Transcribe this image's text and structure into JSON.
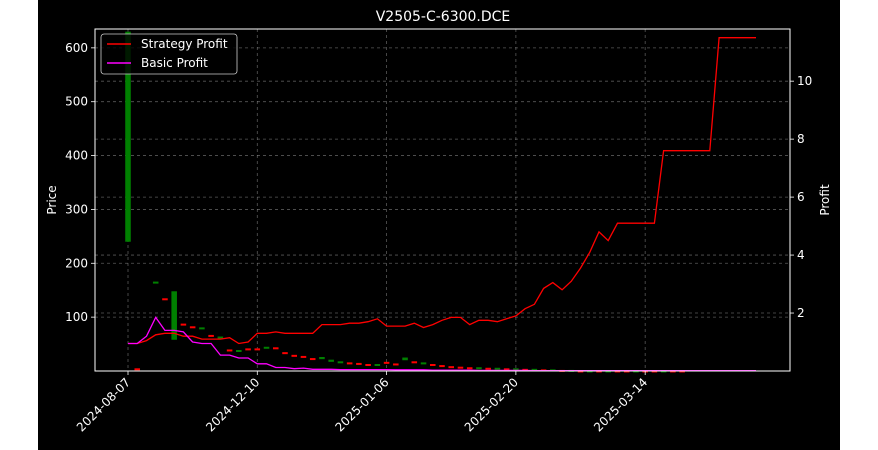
{
  "chart_data": {
    "type": "line",
    "title": "V2505-C-6300.DCE",
    "ylabel": "Price",
    "ylabel_right": "Profit",
    "x_tick_labels": [
      "2024-08-07",
      "2024-12-10",
      "2025-01-06",
      "2025-02-20",
      "2025-03-14"
    ],
    "y_ticks": [
      100,
      200,
      300,
      400,
      500,
      600
    ],
    "y_right_ticks": [
      2,
      4,
      6,
      8,
      10
    ],
    "ylim": [
      0,
      635
    ],
    "ylim_right": [
      0.0,
      11.8
    ],
    "grid": true,
    "legend_position": "top-left",
    "series": [
      {
        "name": "Strategy Profit",
        "axis": "right",
        "color": "#ff0000",
        "values": [
          0.95,
          0.95,
          1.05,
          1.25,
          1.3,
          1.3,
          1.2,
          1.2,
          1.1,
          1.1,
          1.1,
          1.15,
          0.95,
          1.0,
          1.3,
          1.3,
          1.35,
          1.3,
          1.3,
          1.3,
          1.3,
          1.6,
          1.6,
          1.6,
          1.65,
          1.65,
          1.7,
          1.8,
          1.55,
          1.55,
          1.55,
          1.65,
          1.5,
          1.6,
          1.75,
          1.85,
          1.85,
          1.6,
          1.75,
          1.75,
          1.7,
          1.8,
          1.9,
          2.15,
          2.3,
          2.85,
          3.05,
          2.8,
          3.1,
          3.55,
          4.1,
          4.8,
          4.5,
          5.1,
          5.1,
          5.1,
          5.1,
          5.1,
          7.6,
          7.6,
          7.6,
          7.6,
          7.6,
          7.6,
          11.5,
          11.5,
          11.5,
          11.5,
          11.5
        ]
      },
      {
        "name": "Basic Profit",
        "axis": "right",
        "color": "#ff00ff",
        "values": [
          0.95,
          0.95,
          1.2,
          1.85,
          1.4,
          1.4,
          1.35,
          1.0,
          0.95,
          0.95,
          0.55,
          0.55,
          0.45,
          0.45,
          0.25,
          0.25,
          0.12,
          0.12,
          0.08,
          0.1,
          0.06,
          0.06,
          0.06,
          0.05,
          0.05,
          0.05,
          0.05,
          0.05,
          0.05,
          0.04,
          0.04,
          0.04,
          0.04,
          0.03,
          0.03,
          0.03,
          0.03,
          0.03,
          0.02,
          0.02,
          0.02,
          0.02,
          0.02,
          0.02,
          0.01,
          0.01,
          0.01,
          0.01,
          0.01,
          0.01,
          0.01,
          0.01,
          0.01,
          0.01,
          0.01,
          0.01,
          0.01,
          0.01,
          0.01,
          0.01,
          0.01,
          0.01,
          0.01,
          0.01,
          0.01,
          0.01,
          0.01,
          0.01,
          0.01
        ]
      }
    ],
    "candles": [
      {
        "i": 0,
        "open": 240,
        "close": 630,
        "dir": "up"
      },
      {
        "i": 1,
        "open": 3,
        "close": 5,
        "dir": "down"
      },
      {
        "i": 3,
        "open": 165,
        "close": 166,
        "dir": "up"
      },
      {
        "i": 4,
        "open": 133,
        "close": 135,
        "dir": "down"
      },
      {
        "i": 5,
        "open": 58,
        "close": 148,
        "dir": "up"
      },
      {
        "i": 6,
        "open": 88,
        "close": 86,
        "dir": "down"
      },
      {
        "i": 7,
        "open": 83,
        "close": 82,
        "dir": "down"
      },
      {
        "i": 8,
        "open": 79,
        "close": 81,
        "dir": "up"
      },
      {
        "i": 9,
        "open": 67,
        "close": 65,
        "dir": "down"
      },
      {
        "i": 10,
        "open": 63,
        "close": 64,
        "dir": "up"
      },
      {
        "i": 11,
        "open": 40,
        "close": 38,
        "dir": "down"
      },
      {
        "i": 12,
        "open": 38,
        "close": 39,
        "dir": "up"
      },
      {
        "i": 13,
        "open": 42,
        "close": 41,
        "dir": "down"
      },
      {
        "i": 14,
        "open": 42,
        "close": 39,
        "dir": "down"
      },
      {
        "i": 15,
        "open": 44,
        "close": 45,
        "dir": "up"
      },
      {
        "i": 16,
        "open": 44,
        "close": 43,
        "dir": "down"
      },
      {
        "i": 17,
        "open": 35,
        "close": 33,
        "dir": "down"
      },
      {
        "i": 18,
        "open": 30,
        "close": 27,
        "dir": "down"
      },
      {
        "i": 19,
        "open": 28,
        "close": 25,
        "dir": "down"
      },
      {
        "i": 20,
        "open": 24,
        "close": 23,
        "dir": "down"
      },
      {
        "i": 21,
        "open": 22,
        "close": 26,
        "dir": "up"
      },
      {
        "i": 22,
        "open": 17,
        "close": 21,
        "dir": "up"
      },
      {
        "i": 23,
        "open": 17,
        "close": 18,
        "dir": "up"
      },
      {
        "i": 24,
        "open": 16,
        "close": 15,
        "dir": "down"
      },
      {
        "i": 25,
        "open": 15,
        "close": 14,
        "dir": "down"
      },
      {
        "i": 26,
        "open": 13,
        "close": 12,
        "dir": "down"
      },
      {
        "i": 27,
        "open": 12,
        "close": 13,
        "dir": "up"
      },
      {
        "i": 28,
        "open": 17,
        "close": 16,
        "dir": "down"
      },
      {
        "i": 29,
        "open": 14,
        "close": 13,
        "dir": "down"
      },
      {
        "i": 30,
        "open": 20,
        "close": 25,
        "dir": "up"
      },
      {
        "i": 31,
        "open": 18,
        "close": 17,
        "dir": "down"
      },
      {
        "i": 32,
        "open": 15,
        "close": 16,
        "dir": "up"
      },
      {
        "i": 33,
        "open": 13,
        "close": 12,
        "dir": "down"
      },
      {
        "i": 34,
        "open": 11,
        "close": 10,
        "dir": "down"
      },
      {
        "i": 35,
        "open": 9,
        "close": 8,
        "dir": "down"
      },
      {
        "i": 36,
        "open": 8,
        "close": 7,
        "dir": "down"
      },
      {
        "i": 37,
        "open": 7,
        "close": 6,
        "dir": "down"
      },
      {
        "i": 38,
        "open": 6,
        "close": 7,
        "dir": "up"
      },
      {
        "i": 39,
        "open": 6,
        "close": 5,
        "dir": "down"
      },
      {
        "i": 40,
        "open": 5,
        "close": 6,
        "dir": "up"
      },
      {
        "i": 41,
        "open": 5,
        "close": 4,
        "dir": "down"
      },
      {
        "i": 42,
        "open": 4,
        "close": 5,
        "dir": "up"
      },
      {
        "i": 43,
        "open": 4,
        "close": 3,
        "dir": "down"
      },
      {
        "i": 44,
        "open": 3,
        "close": 4,
        "dir": "up"
      },
      {
        "i": 45,
        "open": 3,
        "close": 2,
        "dir": "down"
      },
      {
        "i": 46,
        "open": 2,
        "close": 3,
        "dir": "up"
      },
      {
        "i": 47,
        "open": 2,
        "close": 1,
        "dir": "down"
      },
      {
        "i": 48,
        "open": 2,
        "close": 2,
        "dir": "up"
      },
      {
        "i": 49,
        "open": 1,
        "close": 1,
        "dir": "down"
      },
      {
        "i": 50,
        "open": 1,
        "close": 1,
        "dir": "up"
      },
      {
        "i": 51,
        "open": 1,
        "close": 1,
        "dir": "down"
      },
      {
        "i": 52,
        "open": 1,
        "close": 1,
        "dir": "up"
      },
      {
        "i": 53,
        "open": 1,
        "close": 1,
        "dir": "down"
      },
      {
        "i": 54,
        "open": 1,
        "close": 1,
        "dir": "down"
      },
      {
        "i": 55,
        "open": 1,
        "close": 1,
        "dir": "up"
      },
      {
        "i": 56,
        "open": 1,
        "close": 1,
        "dir": "down"
      },
      {
        "i": 57,
        "open": 1,
        "close": 1,
        "dir": "down"
      },
      {
        "i": 58,
        "open": 1,
        "close": 1,
        "dir": "up"
      },
      {
        "i": 59,
        "open": 1,
        "close": 1,
        "dir": "down"
      },
      {
        "i": 60,
        "open": 1,
        "close": 1,
        "dir": "down"
      }
    ],
    "up_color": "#008000",
    "down_color": "#ff0000"
  }
}
